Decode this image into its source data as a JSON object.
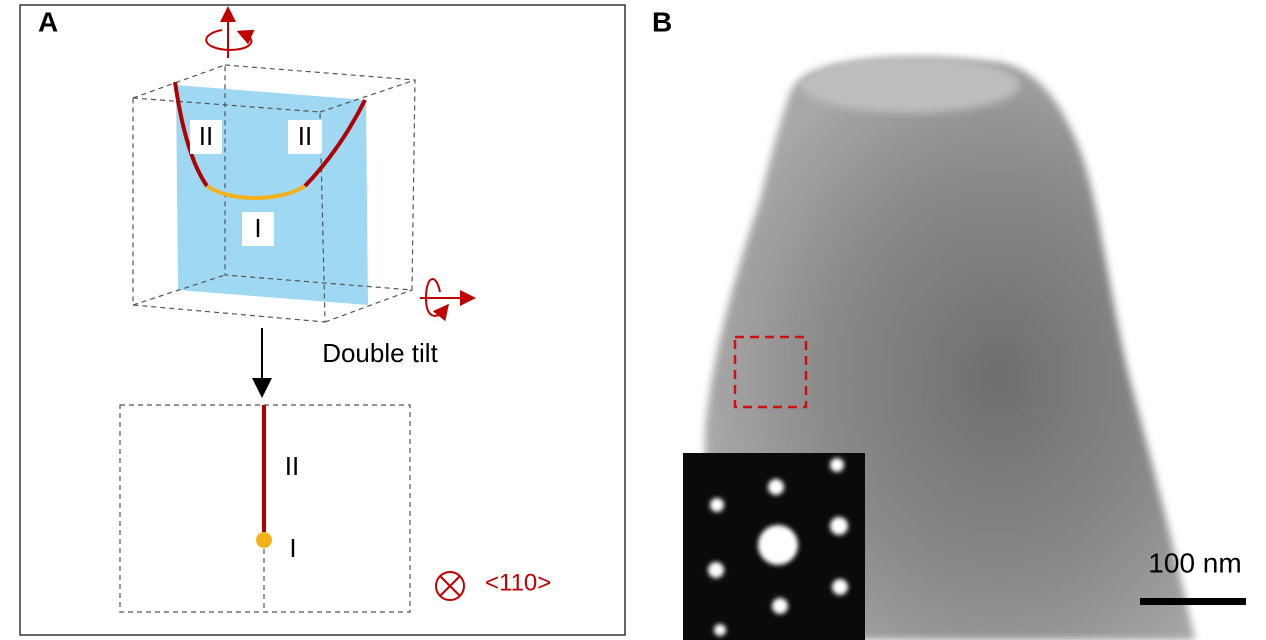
{
  "panel_a": {
    "label": "A",
    "cube_labels": [
      "II",
      "II",
      "I"
    ],
    "step_label": "Double tilt",
    "projection_labels": [
      "II",
      "I"
    ],
    "direction": "<110>"
  },
  "panel_b": {
    "label": "B",
    "scale_bar": "100 nm"
  }
}
